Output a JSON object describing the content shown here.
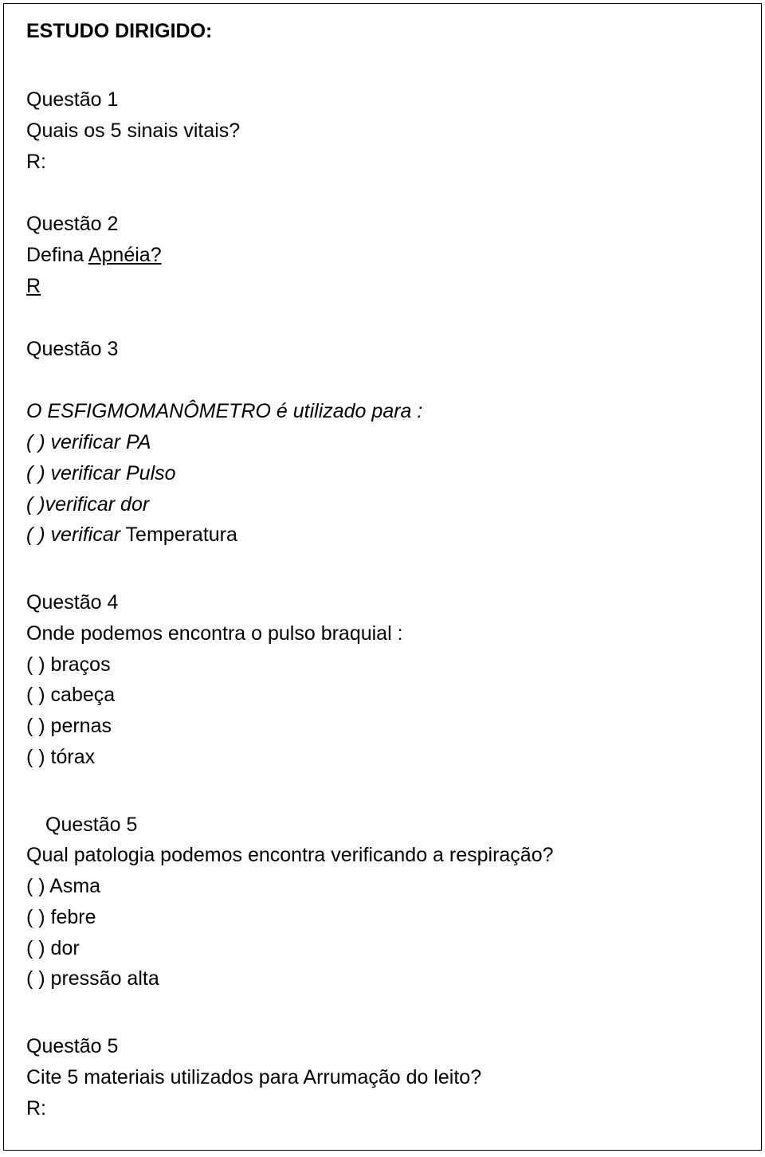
{
  "title": "ESTUDO DIRIGIDO:",
  "q1": {
    "heading": "Questão 1",
    "prompt": "Quais os 5 sinais vitais?",
    "answer_label": "R:"
  },
  "q2": {
    "heading": "Questão 2",
    "prompt_prefix": "Defina ",
    "prompt_underlined": "Apnéia?",
    "answer_label": "R"
  },
  "q3": {
    "heading": "Questão 3",
    "prompt": "O ESFIGMOMANÔMETRO é utilizado para :",
    "options": [
      "(  ) verificar PA",
      "(  ) verificar Pulso",
      "(  )verificar dor",
      "(  ) verificar"
    ],
    "option_tail_plain": " Temperatura"
  },
  "q4": {
    "heading": "Questão 4",
    "prompt": "Onde podemos encontra o pulso braquial :",
    "options": [
      "(  ) braços",
      "(  ) cabeça",
      "(  ) pernas",
      "(  ) tórax"
    ]
  },
  "q5a": {
    "heading": "Questão 5",
    "prompt": "Qual patologia podemos encontra verificando a respiração?",
    "options": [
      "(  ) Asma",
      "(  ) febre",
      "(  ) dor",
      "(  ) pressão alta"
    ]
  },
  "q5b": {
    "heading": "Questão 5",
    "prompt": "Cite 5 materiais utilizados para Arrumação do leito?",
    "answer_label": "R:"
  }
}
